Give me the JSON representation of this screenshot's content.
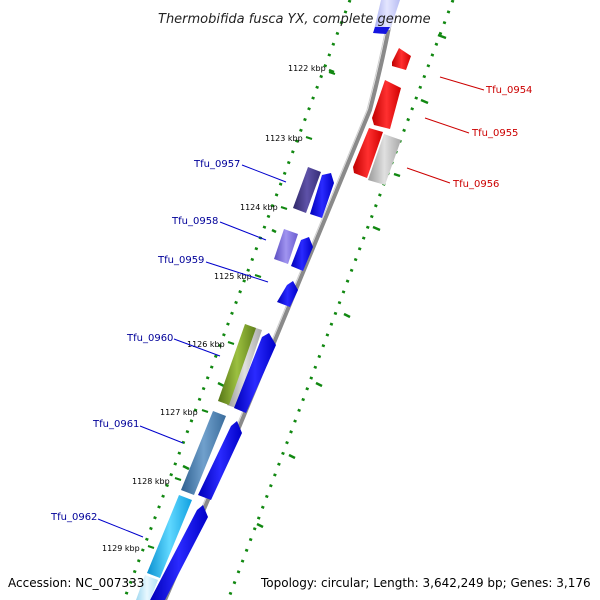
{
  "title": "Thermobifida fusca YX, complete genome",
  "accession": "Accession: NC_007333",
  "summary": "Topology: circular; Length: 3,642,249 bp; Genes: 3,176",
  "ticks": [
    "1122 kbp",
    "1123 kbp",
    "1124 kbp",
    "1125 kbp",
    "1126 kbp",
    "1127 kbp",
    "1128 kbp",
    "1129 kbp"
  ],
  "genes_right": [
    "Tfu_0954",
    "Tfu_0955",
    "Tfu_0956"
  ],
  "genes_left": [
    "Tfu_0957",
    "Tfu_0958",
    "Tfu_0959",
    "Tfu_0960",
    "Tfu_0961",
    "Tfu_0962"
  ],
  "colors": {
    "forward_cds": "#0000ee",
    "reverse_cds": "#ee0000",
    "right_label": "#cc0000",
    "left_label": "#000099",
    "backbone": "#808080",
    "dotted_track": "#118811",
    "cog_gray": "#b4b4b4",
    "cog_violet": "#4a3f8c",
    "cog_lilac": "#7a6ad8",
    "cog_olive": "#7a9a25",
    "cog_steel": "#4a7faf",
    "cog_cyan": "#22bbee"
  }
}
